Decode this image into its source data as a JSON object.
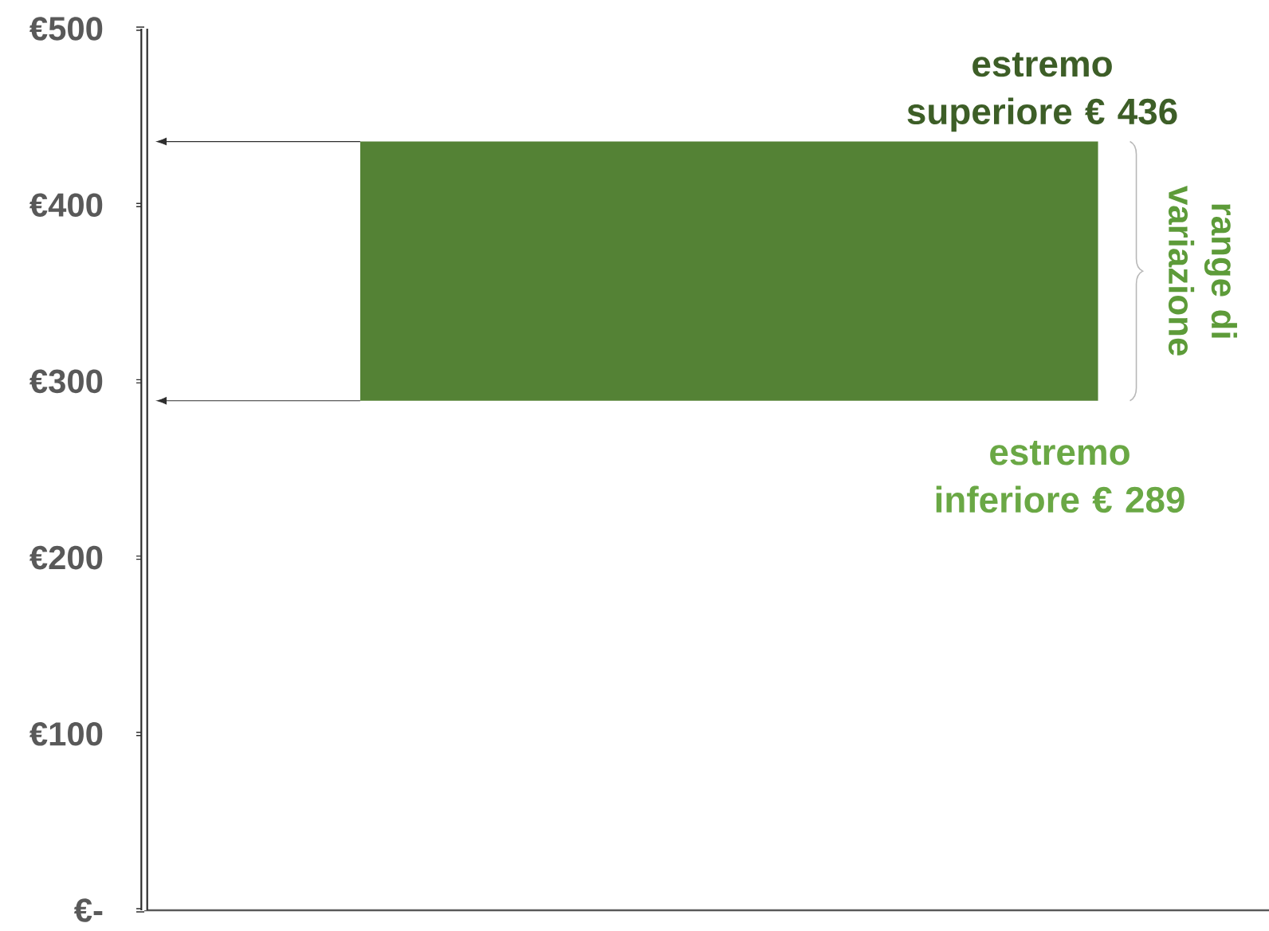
{
  "chart_data": {
    "type": "bar",
    "categories": [
      null
    ],
    "base": [
      289
    ],
    "values": [
      147
    ],
    "color": "#548235",
    "ylim": [
      0,
      500
    ],
    "yticks": [
      {
        "value": 0,
        "label": "€-"
      },
      {
        "value": 100,
        "label": "€100"
      },
      {
        "value": 200,
        "label": "€200"
      },
      {
        "value": 300,
        "label": "€300"
      },
      {
        "value": 400,
        "label": "€400"
      },
      {
        "value": 500,
        "label": "€500"
      }
    ],
    "tick_labels": "y",
    "annotations": [
      {
        "text": "estremo superiore € 436",
        "y": 436
      },
      {
        "text": "estremo inferiore € 289",
        "y": 289
      },
      "range di variazione"
    ]
  }
}
